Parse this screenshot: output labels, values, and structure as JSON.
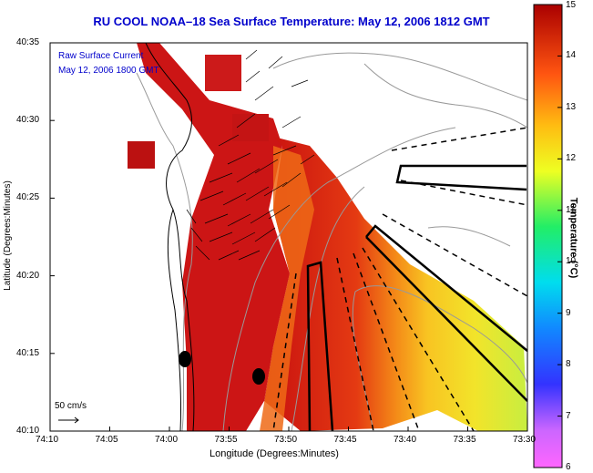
{
  "title": "RU COOL  NOAA–18  Sea Surface Temperature:  May 12, 2006 1812 GMT",
  "overlay": {
    "line1": "Raw Surface Current",
    "line2": "May 12, 2006 1800 GMT"
  },
  "scale_label": "50 cm/s",
  "axes": {
    "xlabel": "Longitude (Degrees:Minutes)",
    "ylabel": "Latitude (Degrees:Minutes)",
    "x_ticks": [
      "74:10",
      "74:05",
      "74:00",
      "73:55",
      "73:50",
      "73:45",
      "73:40",
      "73:35",
      "73:30"
    ],
    "y_ticks": [
      "40:35",
      "40:30",
      "40:25",
      "40:20",
      "40:15",
      "40:10"
    ]
  },
  "colorbar": {
    "label": "Temperature (°C)",
    "ticks": [
      "15",
      "14",
      "13",
      "12",
      "11",
      "10",
      "9",
      "8",
      "7",
      "6"
    ],
    "min": 6,
    "max": 15
  },
  "colors": {
    "title": "#0000cc",
    "land": "#ffffff",
    "warm": "#cc1111",
    "cool": "#f4e620"
  }
}
